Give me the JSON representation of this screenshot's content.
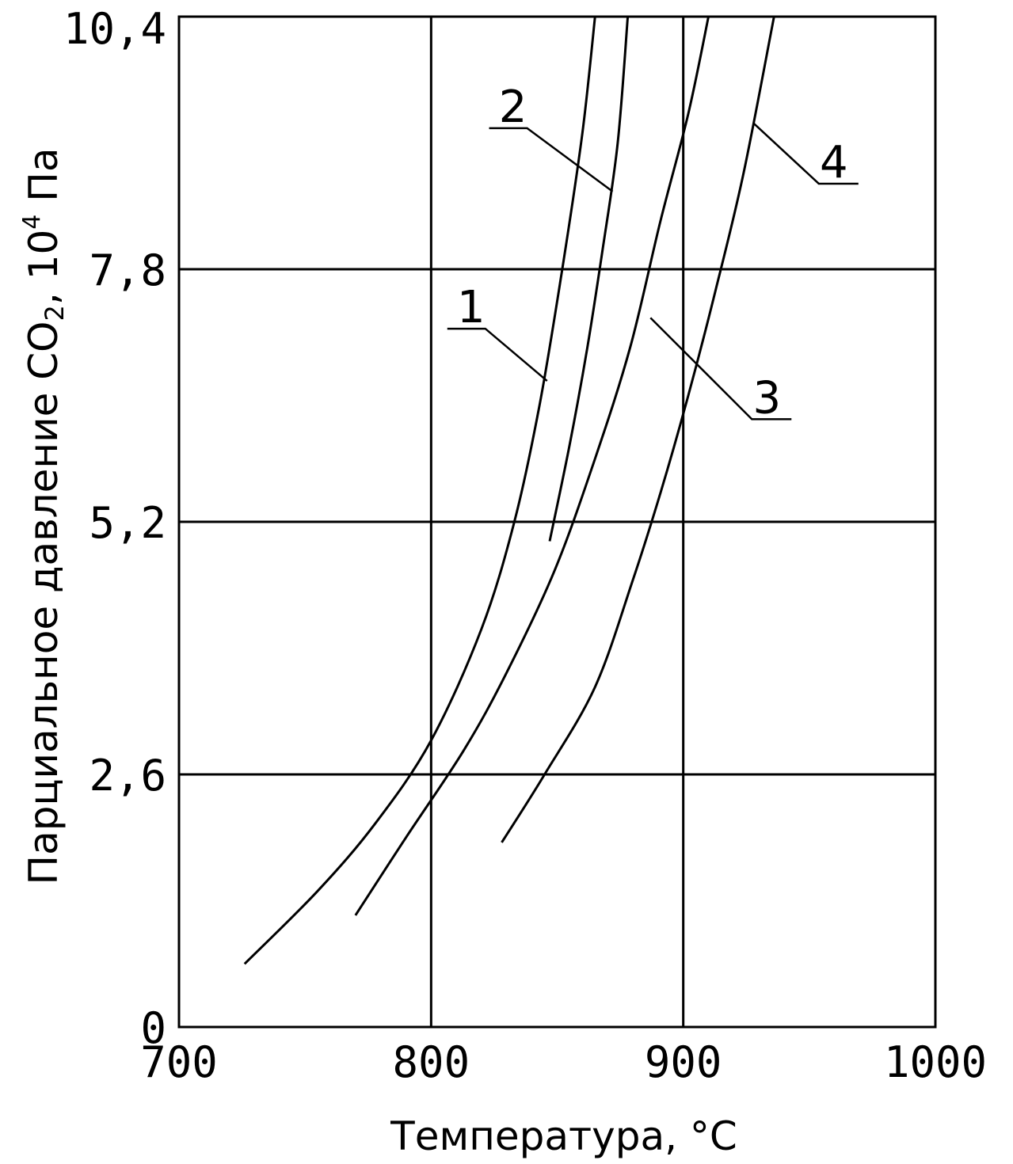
{
  "chart_data": {
    "type": "line",
    "title": "",
    "xlabel": "Температура, °C",
    "ylabel_main": "Парциальное давление CO",
    "ylabel_sub": "2",
    "ylabel_mid": ", 10",
    "ylabel_sup": "4",
    "ylabel_end": " Па",
    "xlim": [
      700,
      1000
    ],
    "ylim": [
      0,
      10.4
    ],
    "x_ticks": [
      700,
      800,
      900,
      1000
    ],
    "x_tick_labels": [
      "700",
      "800",
      "900",
      "1000"
    ],
    "y_ticks": [
      0,
      2.6,
      5.2,
      7.8,
      10.4
    ],
    "y_tick_labels": [
      "0",
      "2,6",
      "5,2",
      "7,8",
      "10,4"
    ],
    "grid": true,
    "series": [
      {
        "label": "1",
        "points": [
          [
            726,
            0.65
          ],
          [
            755,
            1.4
          ],
          [
            778,
            2.1
          ],
          [
            800,
            2.95
          ],
          [
            820,
            4.1
          ],
          [
            833,
            5.2
          ],
          [
            843,
            6.4
          ],
          [
            852,
            7.8
          ],
          [
            860,
            9.2
          ],
          [
            865,
            10.4
          ]
        ]
      },
      {
        "label": "2",
        "points": [
          [
            847,
            5.0
          ],
          [
            855,
            6.0
          ],
          [
            862,
            7.0
          ],
          [
            868,
            8.0
          ],
          [
            874,
            9.1
          ],
          [
            878,
            10.4
          ]
        ]
      },
      {
        "label": "3",
        "points": [
          [
            770,
            1.15
          ],
          [
            790,
            1.95
          ],
          [
            813,
            2.85
          ],
          [
            830,
            3.65
          ],
          [
            849,
            4.7
          ],
          [
            865,
            5.85
          ],
          [
            879,
            7.0
          ],
          [
            891,
            8.3
          ],
          [
            902,
            9.4
          ],
          [
            910,
            10.4
          ]
        ]
      },
      {
        "label": "4",
        "points": [
          [
            828,
            1.9
          ],
          [
            845,
            2.6
          ],
          [
            865,
            3.5
          ],
          [
            880,
            4.6
          ],
          [
            891,
            5.5
          ],
          [
            902,
            6.5
          ],
          [
            913,
            7.6
          ],
          [
            924,
            8.8
          ],
          [
            936,
            10.4
          ]
        ]
      }
    ],
    "annotations": [
      {
        "text": "1",
        "target": [
          846,
          6.65
        ]
      },
      {
        "text": "2",
        "target": [
          872,
          8.6
        ]
      },
      {
        "text": "3",
        "target": [
          887,
          7.3
        ]
      },
      {
        "text": "4",
        "target": [
          928,
          9.3
        ]
      }
    ]
  }
}
